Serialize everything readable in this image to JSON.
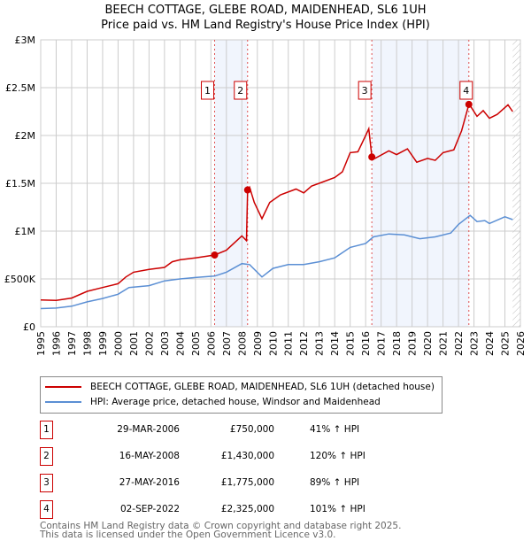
{
  "chart_data": {
    "type": "line",
    "title": "BEECH COTTAGE, GLEBE ROAD, MAIDENHEAD, SL6 1UH",
    "subtitle": "Price paid vs. HM Land Registry's House Price Index (HPI)",
    "xlim": [
      1995,
      2026
    ],
    "ylim": [
      0,
      3000000
    ],
    "yticks": [
      {
        "v": 0,
        "label": "£0"
      },
      {
        "v": 500000,
        "label": "£500K"
      },
      {
        "v": 1000000,
        "label": "£1M"
      },
      {
        "v": 1500000,
        "label": "£1.5M"
      },
      {
        "v": 2000000,
        "label": "£2M"
      },
      {
        "v": 2500000,
        "label": "£2.5M"
      },
      {
        "v": 3000000,
        "label": "£3M"
      }
    ],
    "xticks": [
      "1995",
      "1996",
      "1997",
      "1998",
      "1999",
      "2000",
      "2001",
      "2002",
      "2003",
      "2004",
      "2005",
      "2006",
      "2007",
      "2008",
      "2009",
      "2010",
      "2011",
      "2012",
      "2013",
      "2014",
      "2015",
      "2016",
      "2017",
      "2018",
      "2019",
      "2020",
      "2021",
      "2022",
      "2023",
      "2024",
      "2025",
      "2026"
    ],
    "grid": true,
    "series": [
      {
        "name": "BEECH COTTAGE, GLEBE ROAD, MAIDENHEAD, SL6 1UH (detached house)",
        "color": "#cc0000",
        "x": [
          1995,
          1996,
          1997,
          1998,
          1999,
          2000,
          2000.5,
          2001,
          2002,
          2003,
          2003.5,
          2004,
          2005,
          2006.24,
          2007,
          2008,
          2008.3,
          2008.37,
          2008.5,
          2008.8,
          2009.3,
          2009.8,
          2010.5,
          2011.5,
          2012,
          2012.5,
          2013,
          2014,
          2014.5,
          2015,
          2015.5,
          2016,
          2016.2,
          2016.4,
          2016.6,
          2017.5,
          2018,
          2018.7,
          2019.3,
          2020,
          2020.5,
          2021,
          2021.7,
          2022.2,
          2022.67,
          2022.8,
          2023.2,
          2023.6,
          2024,
          2024.5,
          2025.2,
          2025.5
        ],
        "y": [
          280000,
          275000,
          300000,
          370000,
          410000,
          450000,
          520000,
          570000,
          600000,
          620000,
          680000,
          700000,
          720000,
          750000,
          800000,
          950000,
          900000,
          1430000,
          1460000,
          1300000,
          1130000,
          1300000,
          1380000,
          1440000,
          1400000,
          1470000,
          1500000,
          1560000,
          1620000,
          1820000,
          1830000,
          2000000,
          2070000,
          1775000,
          1760000,
          1840000,
          1800000,
          1860000,
          1720000,
          1760000,
          1740000,
          1820000,
          1850000,
          2050000,
          2325000,
          2300000,
          2200000,
          2260000,
          2180000,
          2220000,
          2320000,
          2250000
        ]
      },
      {
        "name": "HPI: Average price, detached house, Windsor and Maidenhead",
        "color": "#5b8fd4",
        "x": [
          1995,
          1996,
          1997,
          1998,
          1999,
          2000,
          2000.7,
          2002,
          2003,
          2004,
          2005,
          2006.24,
          2007,
          2008,
          2008.5,
          2009.3,
          2010,
          2011,
          2012,
          2013,
          2014,
          2015,
          2016,
          2016.5,
          2017.5,
          2018.5,
          2019.5,
          2020.5,
          2021.5,
          2022,
          2022.75,
          2023.2,
          2023.7,
          2024,
          2025,
          2025.5
        ],
        "y": [
          190000,
          195000,
          215000,
          260000,
          295000,
          340000,
          410000,
          430000,
          480000,
          500000,
          515000,
          530000,
          570000,
          660000,
          650000,
          520000,
          610000,
          650000,
          650000,
          680000,
          720000,
          830000,
          870000,
          940000,
          970000,
          960000,
          920000,
          940000,
          980000,
          1070000,
          1165000,
          1100000,
          1110000,
          1080000,
          1150000,
          1120000
        ]
      }
    ],
    "sales": [
      {
        "n": "1",
        "x": 2006.24,
        "y": 750000,
        "date": "29-MAR-2006",
        "price": "£750,000",
        "hpi": "41% ↑ HPI"
      },
      {
        "n": "2",
        "x": 2008.37,
        "y": 1430000,
        "date": "16-MAY-2008",
        "price": "£1,430,000",
        "hpi": "120% ↑ HPI"
      },
      {
        "n": "3",
        "x": 2016.4,
        "y": 1775000,
        "date": "27-MAY-2016",
        "price": "£1,775,000",
        "hpi": "89% ↑ HPI"
      },
      {
        "n": "4",
        "x": 2022.67,
        "y": 2325000,
        "date": "02-SEP-2022",
        "price": "£2,325,000",
        "hpi": "101% ↑ HPI"
      }
    ],
    "shaded_periods": [
      [
        2006.24,
        2008.37
      ],
      [
        2016.4,
        2022.67
      ]
    ],
    "forecast_start": 2025.5,
    "legend_position": "below"
  },
  "footer": {
    "line1": "Contains HM Land Registry data © Crown copyright and database right 2025.",
    "line2": "This data is licensed under the Open Government Licence v3.0."
  }
}
